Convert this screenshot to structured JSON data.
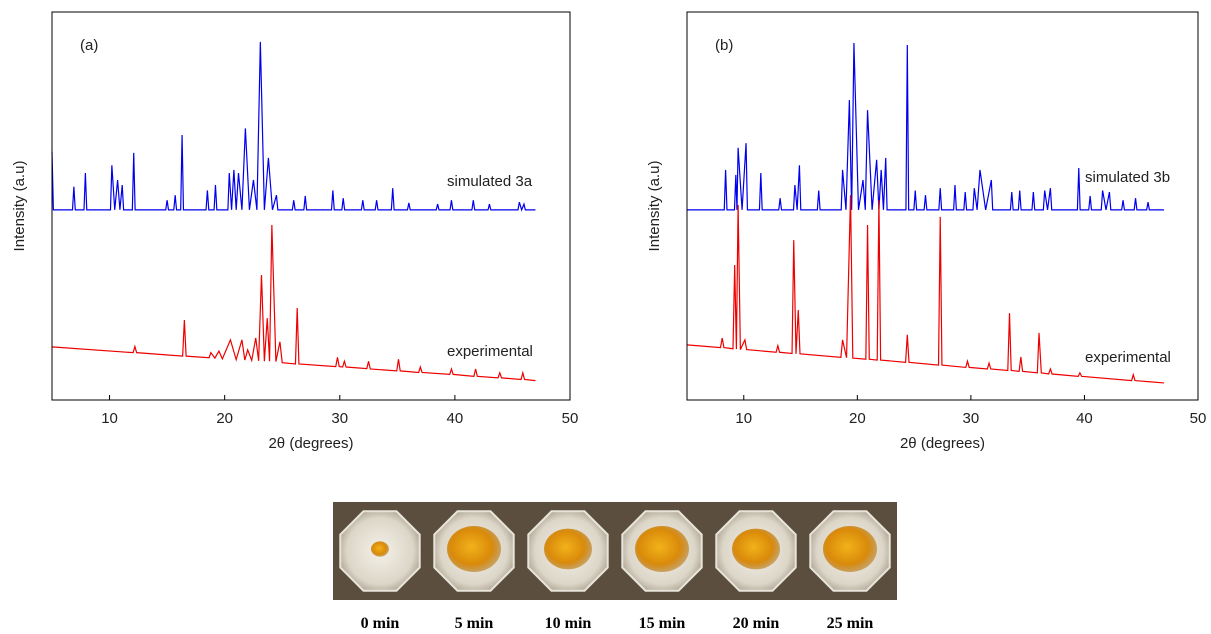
{
  "chart_data": [
    {
      "type": "line",
      "panel_label": "(a)",
      "xlabel": "2θ (degrees)",
      "ylabel": "Intensity (a.u)",
      "xlim": [
        5,
        50
      ],
      "xticks": [
        10,
        20,
        30,
        40,
        50
      ],
      "ylim": [
        0,
        100
      ],
      "series": [
        {
          "name": "simulated 3a",
          "color": "#0000ee",
          "x": [
            5,
            5.12,
            6.78,
            6.9,
            7.02,
            7.78,
            7.9,
            8.02,
            10.08,
            10.2,
            10.45,
            10.7,
            10.9,
            11.1,
            11.22,
            11.98,
            12.1,
            12.22,
            14.88,
            15,
            15.12,
            15.58,
            15.7,
            15.82,
            16.18,
            16.3,
            16.42,
            18.38,
            18.5,
            18.62,
            19.08,
            19.2,
            19.32,
            20.28,
            20.4,
            20.6,
            20.8,
            21,
            21.2,
            21.5,
            21.8,
            22.15,
            22.5,
            22.8,
            23.1,
            23.45,
            23.8,
            24.15,
            24.5,
            24.62,
            25.88,
            26,
            26.12,
            26.88,
            27,
            27.12,
            29.28,
            29.4,
            29.52,
            30.18,
            30.3,
            30.42,
            31.88,
            32,
            32.12,
            33.08,
            33.2,
            33.32,
            34.48,
            34.6,
            34.72,
            35.88,
            36,
            36.12,
            38.38,
            38.5,
            38.62,
            39.58,
            39.7,
            39.82,
            41.48,
            41.6,
            41.72,
            42.88,
            43,
            43.12,
            45.48,
            45.6,
            45.8,
            46,
            46.12,
            47
          ],
          "values": [
            64,
            49,
            49,
            55,
            49,
            49,
            58.5,
            49,
            49,
            60.5,
            49,
            56.7,
            49,
            55.4,
            49,
            49,
            63.7,
            49,
            49,
            51.5,
            49,
            49,
            52.8,
            49,
            49,
            68.3,
            49,
            49,
            54,
            49,
            49,
            55.4,
            49,
            49,
            58.5,
            49,
            59.3,
            49,
            58.5,
            49,
            70,
            49,
            56.7,
            49,
            92.3,
            49,
            62.4,
            49,
            52.8,
            49,
            49,
            51.5,
            49,
            49,
            52.6,
            49,
            49,
            54,
            49,
            49,
            52,
            49,
            49,
            51.5,
            49,
            49,
            51.5,
            49,
            49,
            54.6,
            49,
            49,
            50.8,
            49,
            49,
            50.5,
            49,
            49,
            51.5,
            49,
            49,
            51.5,
            49,
            49,
            50.5,
            49,
            49,
            51,
            49,
            50.5,
            49,
            49
          ]
        },
        {
          "name": "experimental",
          "color": "#ee0000",
          "x": [
            5,
            12.05,
            12.2,
            12.35,
            16.35,
            16.5,
            16.65,
            18.65,
            18.8,
            19.15,
            19.5,
            19.8,
            20.5,
            21,
            21.5,
            21.75,
            22,
            22.35,
            22.7,
            22.95,
            23.2,
            23.45,
            23.7,
            23.9,
            24.1,
            24.45,
            24.8,
            25,
            26.15,
            26.3,
            26.45,
            29.65,
            29.8,
            29.95,
            30.25,
            30.4,
            30.55,
            32.35,
            32.5,
            32.65,
            34.95,
            35.1,
            35.25,
            36.85,
            37,
            37.15,
            39.55,
            39.7,
            39.85,
            41.65,
            41.8,
            41.95,
            43.75,
            43.9,
            44.05,
            45.75,
            45.9,
            46.05,
            47
          ],
          "values": [
            13.7,
            12.2,
            13.8,
            12.2,
            11.3,
            20.6,
            11.3,
            10.9,
            12.2,
            10.8,
            12.6,
            10.6,
            15.5,
            10.4,
            15.5,
            10.3,
            12.9,
            10.2,
            16,
            10.1,
            32.2,
            10,
            21.1,
            10,
            45.1,
            9.9,
            15,
            9.6,
            9.3,
            23.7,
            9.3,
            8.6,
            11,
            8.6,
            8.5,
            10,
            8.5,
            8.1,
            10,
            8,
            7.5,
            10.5,
            7.5,
            7.1,
            8.5,
            7.1,
            6.6,
            8,
            6.6,
            6.1,
            8,
            6.1,
            5.7,
            7,
            5.7,
            5.3,
            7,
            5.3,
            5
          ]
        }
      ]
    },
    {
      "type": "line",
      "panel_label": "(b)",
      "xlabel": "2θ (degrees)",
      "ylabel": "Intensity (a.u)",
      "xlim": [
        5,
        50
      ],
      "xticks": [
        10,
        20,
        30,
        40,
        50
      ],
      "ylim": [
        0,
        100
      ],
      "series": [
        {
          "name": "simulated 3b",
          "color": "#0000ee",
          "x": [
            5,
            8.28,
            8.4,
            8.52,
            9.18,
            9.3,
            9.4,
            9.5,
            9.85,
            10.2,
            10.32,
            11.38,
            11.5,
            11.62,
            13.08,
            13.2,
            13.32,
            14.38,
            14.5,
            14.7,
            14.9,
            15.02,
            16.48,
            16.6,
            16.72,
            18.58,
            18.7,
            19,
            19.3,
            19.5,
            19.7,
            20.1,
            20.5,
            20.7,
            20.9,
            21.3,
            21.7,
            21.9,
            22.1,
            22.3,
            22.5,
            22.62,
            24.28,
            24.4,
            24.52,
            24.98,
            25.1,
            25.22,
            25.88,
            26,
            26.12,
            27.18,
            27.3,
            27.42,
            28.48,
            28.6,
            28.72,
            29.38,
            29.5,
            29.62,
            30.18,
            30.3,
            30.55,
            30.8,
            31.3,
            31.8,
            31.92,
            33.48,
            33.6,
            33.72,
            34.18,
            34.3,
            34.42,
            35.38,
            35.5,
            35.62,
            36.38,
            36.5,
            36.75,
            37,
            37.12,
            39.38,
            39.5,
            39.62,
            40.38,
            40.5,
            40.62,
            41.48,
            41.6,
            41.9,
            42.2,
            42.32,
            43.28,
            43.4,
            43.52,
            44.38,
            44.5,
            44.62,
            45.48,
            45.6,
            45.72,
            47
          ],
          "values": [
            49,
            49,
            59.3,
            49,
            49,
            58,
            49,
            65,
            49,
            66.2,
            49,
            49,
            58.5,
            49,
            49,
            52,
            49,
            49,
            55.4,
            49,
            60.5,
            49,
            49,
            54,
            49,
            49,
            59.3,
            49,
            77.3,
            49,
            92,
            49,
            56.7,
            49,
            74.7,
            49,
            61.9,
            49,
            59.3,
            49,
            62.4,
            49,
            49,
            91.5,
            49,
            49,
            54,
            49,
            49,
            52.8,
            49,
            49,
            54.6,
            49,
            49,
            55.4,
            49,
            49,
            53.6,
            49,
            49,
            54.6,
            49,
            59.3,
            49,
            56.7,
            49,
            49,
            53.6,
            49,
            49,
            54,
            49,
            49,
            53.6,
            49,
            49,
            54,
            49,
            54.6,
            49,
            49,
            59.8,
            49,
            49,
            52.6,
            49,
            49,
            54,
            49,
            53.6,
            49,
            49,
            51.5,
            49,
            49,
            52,
            49,
            49,
            51,
            49,
            49
          ]
        },
        {
          "name": "experimental",
          "color": "#ee0000",
          "x": [
            5,
            7.95,
            8.1,
            8.25,
            9.05,
            9.2,
            9.35,
            9.5,
            9.7,
            10.1,
            10.25,
            12.85,
            13,
            13.15,
            14.25,
            14.4,
            14.6,
            14.8,
            14.95,
            18.55,
            18.7,
            19.05,
            19.4,
            19.6,
            20.75,
            20.9,
            21.05,
            21.75,
            21.9,
            22.05,
            24.25,
            24.4,
            24.55,
            27.15,
            27.3,
            27.45,
            29.55,
            29.7,
            29.85,
            31.45,
            31.6,
            31.75,
            33.25,
            33.4,
            33.55,
            34.25,
            34.4,
            34.55,
            35.85,
            36,
            36.2,
            36.85,
            37,
            37.15,
            39.45,
            39.6,
            39.75,
            44.15,
            44.3,
            44.45,
            47
          ],
          "values": [
            14.2,
            13.5,
            16,
            13.5,
            13.2,
            34.8,
            13.1,
            50.3,
            13,
            15.5,
            13,
            12.3,
            14,
            12.3,
            12,
            41.2,
            11.9,
            23.2,
            11.9,
            11,
            15.5,
            10.9,
            52.8,
            10.8,
            10.5,
            45.1,
            10.5,
            10.3,
            51.5,
            10.3,
            9.7,
            16.8,
            9.7,
            9,
            47.2,
            9,
            8.4,
            10,
            8.4,
            8,
            9.5,
            8,
            7.6,
            22.4,
            7.6,
            7.4,
            11.1,
            7.4,
            7,
            17.3,
            7,
            6.7,
            8,
            6.7,
            6.1,
            7,
            6.1,
            5,
            6.5,
            5,
            4.4
          ]
        }
      ]
    }
  ],
  "photos": {
    "labels": [
      "0 min",
      "5 min",
      "10 min",
      "15 min",
      "20 min",
      "25 min"
    ]
  }
}
